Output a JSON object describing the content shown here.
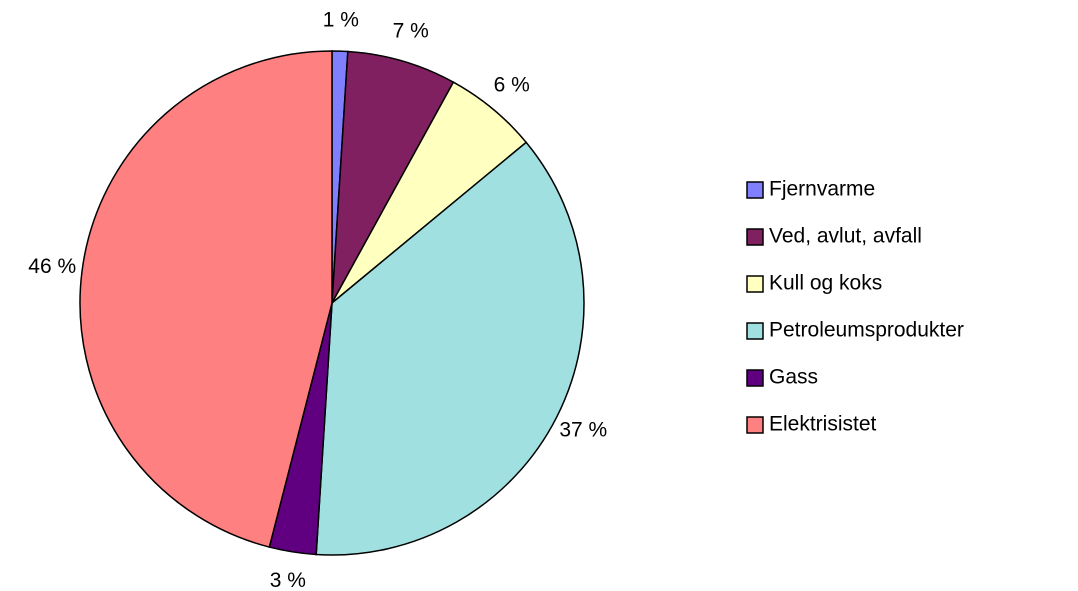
{
  "chart_data": {
    "type": "pie",
    "categories": [
      "Fjernvarme",
      "Ved, avlut, avfall",
      "Kull og koks",
      "Petroleumsprodukter",
      "Gass",
      "Elektrisistet"
    ],
    "values": [
      1,
      7,
      6,
      37,
      3,
      46
    ],
    "value_labels": [
      "1 %",
      "7 %",
      "6 %",
      "37 %",
      "3 %",
      "46 %"
    ],
    "colors": [
      "#8080ff",
      "#802060",
      "#ffffc0",
      "#a0e0e0",
      "#600080",
      "#ff8080"
    ],
    "legend": "right"
  }
}
